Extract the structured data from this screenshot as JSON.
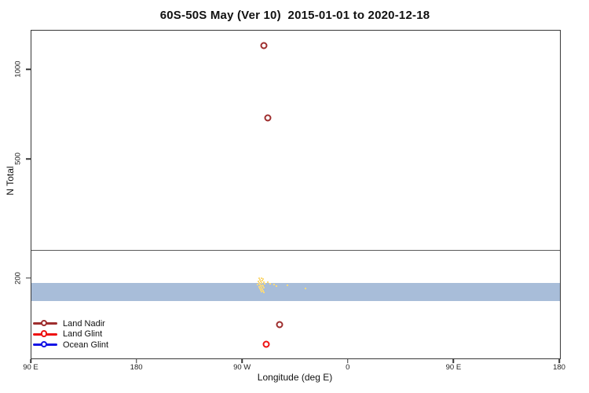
{
  "title": "60S-50S May (Ver 10)  2015-01-01 to 2020-12-18",
  "axes": {
    "x_label": "Longitude (deg E)",
    "y_label": "N Total",
    "x_tick_labels": [
      "90 E",
      "180",
      "90 W",
      "0",
      "90 E",
      "180"
    ],
    "y_tick_labels": [
      "1000",
      "500",
      "200"
    ]
  },
  "legend": [
    {
      "label": "Land Nadir",
      "color": "#9e2e2e"
    },
    {
      "label": "Land Glint",
      "color": "#ee1111"
    },
    {
      "label": "Ocean Glint",
      "color": "#1414e6"
    }
  ],
  "colors": {
    "ocean_glint_band": "#a8bdd9",
    "unlabeled_specks": "#fbda7a",
    "reference_line": "#5a5a5a"
  },
  "chart_data": {
    "type": "scatter",
    "title": "60S-50S May (Ver 10)  2015-01-01 to 2020-12-18",
    "xlabel": "Longitude (deg E)",
    "ylabel": "N Total",
    "x_axis": {
      "units": "degrees east, wrapped 90E through 180 to 180",
      "range_degE": [
        90,
        540
      ],
      "ticks": [
        {
          "lon": 90,
          "label": "90 E"
        },
        {
          "lon": 180,
          "label": "180"
        },
        {
          "lon": 270,
          "label": "90 W"
        },
        {
          "lon": 360,
          "label": "0"
        },
        {
          "lon": 450,
          "label": "90 E"
        },
        {
          "lon": 540,
          "label": "180"
        }
      ]
    },
    "y_axis": {
      "scale": "log",
      "range": [
        111,
        1340
      ],
      "ticks": [
        {
          "n": 1000,
          "label": "1000"
        },
        {
          "n": 500,
          "label": "500"
        },
        {
          "n": 200,
          "label": "200"
        }
      ]
    },
    "grid": false,
    "legend_position": "bottom-left inside plot",
    "reference_line_n": 250,
    "series": [
      {
        "name": "Land Nadir",
        "color": "#9e2e2e",
        "marker": "open-circle",
        "points": [
          {
            "lon": 288,
            "n": 1210
          },
          {
            "lon": 291,
            "n": 690
          },
          {
            "lon": 301,
            "n": 140
          }
        ]
      },
      {
        "name": "Land Glint",
        "color": "#ee1111",
        "marker": "open-circle",
        "points": [
          {
            "lon": 290,
            "n": 121
          }
        ]
      },
      {
        "name": "Ocean Glint",
        "color": "#a8bdd9",
        "marker": "band",
        "band": {
          "lon_range": [
            90,
            540
          ],
          "n_range": [
            168,
            193
          ]
        }
      },
      {
        "name": "unlabeled-yellow-cluster",
        "color": "#fbda7a",
        "marker": "pixel",
        "points": [
          [
            283.9,
            201
          ],
          [
            285.9,
            201
          ],
          [
            287.2,
            200
          ],
          [
            284.6,
            198
          ],
          [
            286.6,
            197
          ],
          [
            283.2,
            196
          ],
          [
            285.2,
            196
          ],
          [
            287.9,
            195
          ],
          [
            283.9,
            194
          ],
          [
            285.9,
            194
          ],
          [
            288.6,
            192
          ],
          [
            282.6,
            191
          ],
          [
            284.6,
            191
          ],
          [
            286.6,
            190
          ],
          [
            285.2,
            189
          ],
          [
            287.2,
            189
          ],
          [
            283.9,
            188
          ],
          [
            285.9,
            187
          ],
          [
            287.9,
            187
          ],
          [
            284.6,
            186
          ],
          [
            286.6,
            184
          ],
          [
            285.2,
            183
          ],
          [
            287.2,
            182
          ],
          [
            285.9,
            181
          ],
          [
            287.9,
            180
          ],
          [
            291.3,
            195
          ],
          [
            293.3,
            192
          ],
          [
            296.6,
            191
          ],
          [
            298.6,
            189
          ],
          [
            308.0,
            190
          ],
          [
            323.4,
            186
          ]
        ]
      }
    ]
  }
}
